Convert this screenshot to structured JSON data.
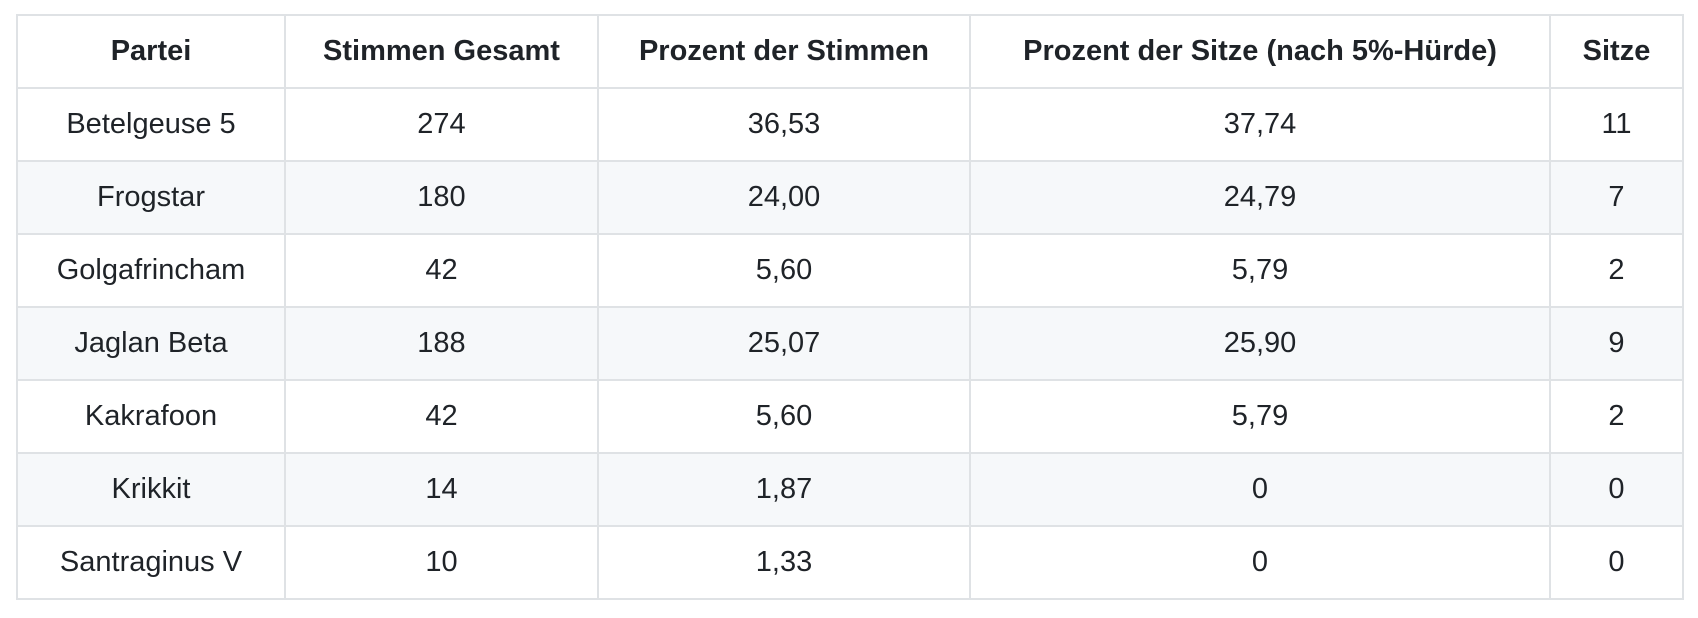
{
  "colors": {
    "border": "#dfe2e5",
    "stripe_row_bg": "#f6f8fa",
    "row_bg": "#ffffff",
    "text": "#1f2328"
  },
  "table": {
    "headers": [
      "Partei",
      "Stimmen Gesamt",
      "Prozent der Stimmen",
      "Prozent der Sitze (nach 5%-Hürde)",
      "Sitze"
    ],
    "rows": [
      [
        "Betelgeuse 5",
        "274",
        "36,53",
        "37,74",
        "11"
      ],
      [
        "Frogstar",
        "180",
        "24,00",
        "24,79",
        "7"
      ],
      [
        "Golgafrincham",
        "42",
        "5,60",
        "5,79",
        "2"
      ],
      [
        "Jaglan Beta",
        "188",
        "25,07",
        "25,90",
        "9"
      ],
      [
        "Kakrafoon",
        "42",
        "5,60",
        "5,79",
        "2"
      ],
      [
        "Krikkit",
        "14",
        "1,87",
        "0",
        "0"
      ],
      [
        "Santraginus V",
        "10",
        "1,33",
        "0",
        "0"
      ]
    ]
  },
  "chart_data": {
    "type": "table",
    "columns": [
      "Partei",
      "Stimmen Gesamt",
      "Prozent der Stimmen",
      "Prozent der Sitze (nach 5%-Hürde)",
      "Sitze"
    ],
    "rows": [
      {
        "partei": "Betelgeuse 5",
        "stimmen_gesamt": 274,
        "prozent_der_stimmen": 36.53,
        "prozent_der_sitze": 37.74,
        "sitze": 11
      },
      {
        "partei": "Frogstar",
        "stimmen_gesamt": 180,
        "prozent_der_stimmen": 24.0,
        "prozent_der_sitze": 24.79,
        "sitze": 7
      },
      {
        "partei": "Golgafrincham",
        "stimmen_gesamt": 42,
        "prozent_der_stimmen": 5.6,
        "prozent_der_sitze": 5.79,
        "sitze": 2
      },
      {
        "partei": "Jaglan Beta",
        "stimmen_gesamt": 188,
        "prozent_der_stimmen": 25.07,
        "prozent_der_sitze": 25.9,
        "sitze": 9
      },
      {
        "partei": "Kakrafoon",
        "stimmen_gesamt": 42,
        "prozent_der_stimmen": 5.6,
        "prozent_der_sitze": 5.79,
        "sitze": 2
      },
      {
        "partei": "Krikkit",
        "stimmen_gesamt": 14,
        "prozent_der_stimmen": 1.87,
        "prozent_der_sitze": 0,
        "sitze": 0
      },
      {
        "partei": "Santraginus V",
        "stimmen_gesamt": 10,
        "prozent_der_stimmen": 1.33,
        "prozent_der_sitze": 0,
        "sitze": 0
      }
    ]
  }
}
